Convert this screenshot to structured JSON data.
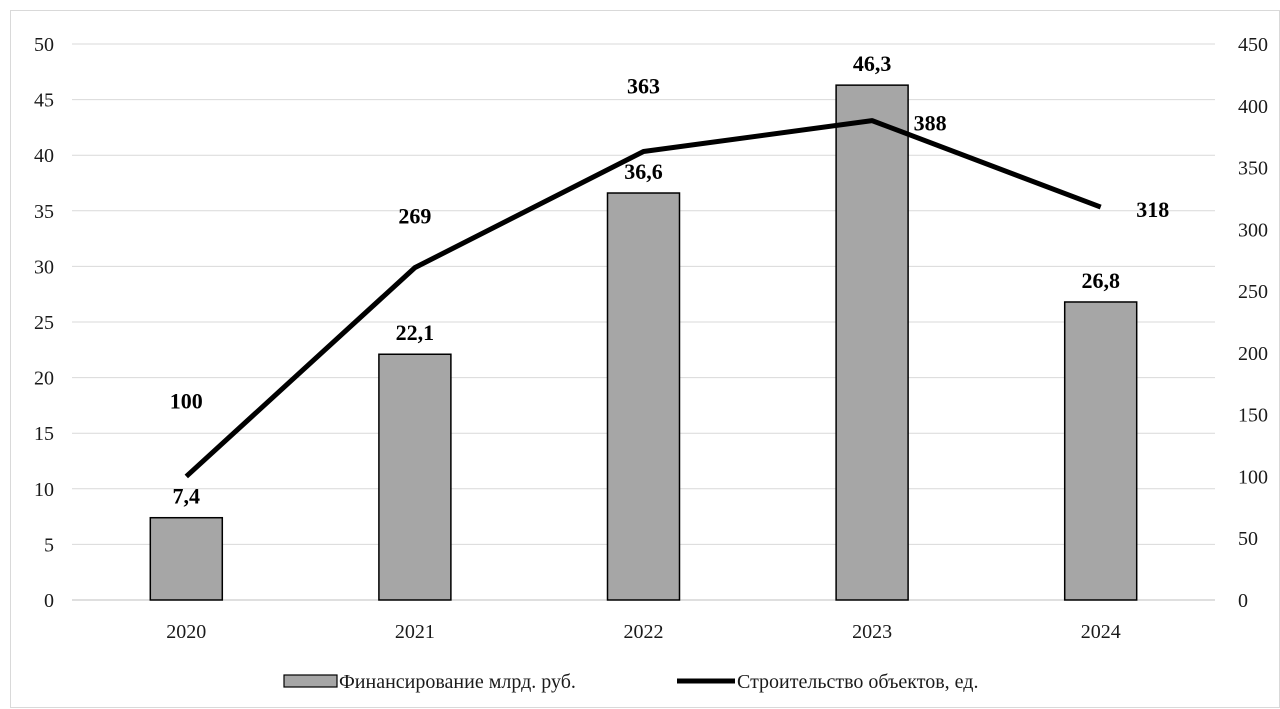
{
  "chart_data": {
    "type": "bar",
    "categories": [
      "2020",
      "2021",
      "2022",
      "2023",
      "2024"
    ],
    "series": [
      {
        "name": "Финансирование млрд. руб.",
        "kind": "bar",
        "axis": "left",
        "values": [
          7.4,
          22.1,
          36.6,
          46.3,
          26.8
        ],
        "labels": [
          "7,4",
          "22,1",
          "36,6",
          "46,3",
          "26,8"
        ]
      },
      {
        "name": "Строительство объектов, ед.",
        "kind": "line",
        "axis": "right",
        "values": [
          100,
          269,
          363,
          388,
          318
        ],
        "labels": [
          "100",
          "269",
          "363",
          "388",
          "318"
        ]
      }
    ],
    "y_left": {
      "ylim": [
        0,
        50
      ],
      "ticks": [
        "0",
        "5",
        "10",
        "15",
        "20",
        "25",
        "30",
        "35",
        "40",
        "45",
        "50"
      ]
    },
    "y_right": {
      "ylim": [
        0,
        450
      ],
      "ticks": [
        "0",
        "50",
        "100",
        "150",
        "200",
        "250",
        "300",
        "350",
        "400",
        "450"
      ]
    },
    "grid": true,
    "legend_position": "bottom",
    "colors": {
      "bar_fill": "#a6a6a6",
      "bar_stroke": "#000000",
      "line": "#000000",
      "grid": "#d9d9d9"
    }
  }
}
